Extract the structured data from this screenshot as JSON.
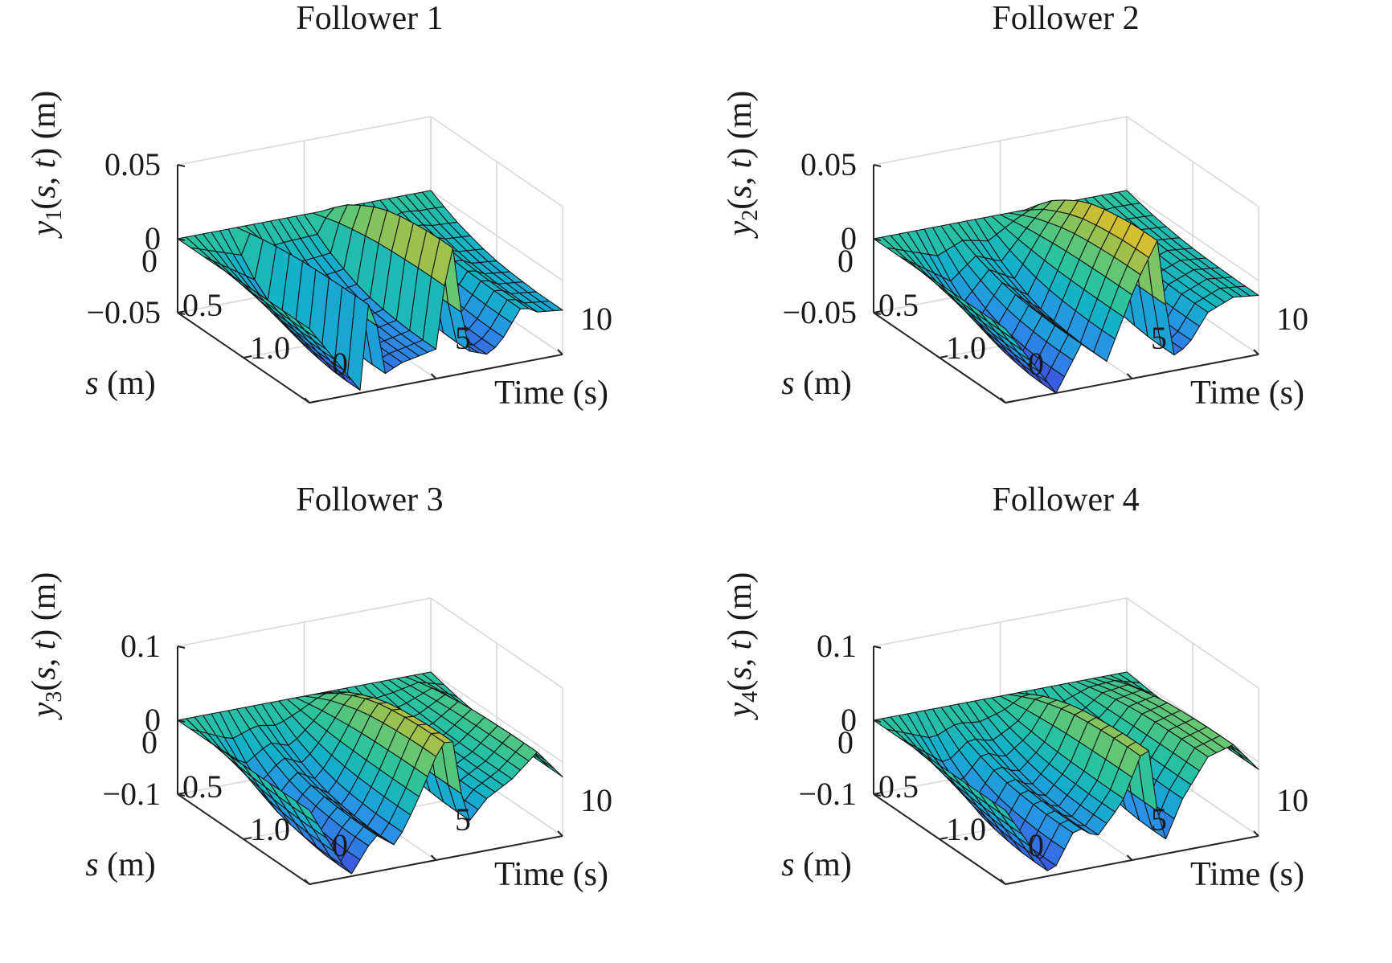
{
  "chart_data": [
    {
      "type": "surface",
      "title": "Follower 1",
      "index": "1",
      "xlabel": "Time (s)",
      "ylabel": "s (m)",
      "zlabel": "y1(s, t) (m)",
      "xlim": [
        0,
        10
      ],
      "ylim": [
        0,
        1.0
      ],
      "zlim": [
        -0.05,
        0.05
      ],
      "xticks": [
        "0",
        "5",
        "10"
      ],
      "yticks": [
        "0",
        "0.5",
        "1.0"
      ],
      "zticks": [
        "0.05",
        "0",
        "−0.05"
      ],
      "zcolor_range": [
        -0.06,
        0.06
      ],
      "surface": {
        "t_steps": 31,
        "s_steps": 11,
        "t_max": 10,
        "s_max": 1.0,
        "deflection_envelope": [
          0,
          0.24,
          0.46,
          0.62,
          0.76,
          0.86,
          0.92,
          0.96,
          0.99,
          1.0,
          1.0
        ],
        "tip_deflection": [
          {
            "t": 0,
            "z": 0
          },
          {
            "t": 2.0,
            "z": -0.048
          },
          {
            "t": 2.4,
            "z": 0.02
          },
          {
            "t": 3.0,
            "z": -0.04
          },
          {
            "t": 3.6,
            "z": -0.035
          },
          {
            "t": 4.2,
            "z": -0.033
          },
          {
            "t": 5.0,
            "z": -0.03
          },
          {
            "t": 5.6,
            "z": 0.045
          },
          {
            "t": 6.2,
            "z": -0.035
          },
          {
            "t": 7.0,
            "z": -0.04
          },
          {
            "t": 7.5,
            "z": -0.035
          },
          {
            "t": 8.4,
            "z": -0.012
          },
          {
            "t": 9.0,
            "z": -0.018
          },
          {
            "t": 10,
            "z": -0.02
          }
        ]
      }
    },
    {
      "type": "surface",
      "title": "Follower 2",
      "index": "2",
      "xlabel": "Time (s)",
      "ylabel": "s (m)",
      "zlabel": "y2(s, t) (m)",
      "xlim": [
        0,
        10
      ],
      "ylim": [
        0,
        1.0
      ],
      "zlim": [
        -0.05,
        0.05
      ],
      "xticks": [
        "0",
        "5",
        "10"
      ],
      "yticks": [
        "0",
        "0.5",
        "1.0"
      ],
      "zticks": [
        "0.05",
        "0",
        "−0.05"
      ],
      "zcolor_range": [
        -0.06,
        0.06
      ],
      "surface": {
        "t_steps": 31,
        "s_steps": 11,
        "t_max": 10,
        "s_max": 1.0,
        "deflection_envelope": [
          0,
          0.24,
          0.46,
          0.62,
          0.76,
          0.86,
          0.92,
          0.96,
          0.99,
          1.0,
          1.0
        ],
        "tip_deflection": [
          {
            "t": 0,
            "z": 0
          },
          {
            "t": 2.0,
            "z": -0.05
          },
          {
            "t": 3.0,
            "z": -0.02
          },
          {
            "t": 4.0,
            "z": -0.035
          },
          {
            "t": 5.2,
            "z": 0.015
          },
          {
            "t": 6.0,
            "z": 0.04
          },
          {
            "t": 6.6,
            "z": -0.04
          },
          {
            "t": 7.2,
            "z": -0.035
          },
          {
            "t": 8.0,
            "z": -0.015
          },
          {
            "t": 9.0,
            "z": -0.008
          },
          {
            "t": 10,
            "z": -0.01
          }
        ]
      }
    },
    {
      "type": "surface",
      "title": "Follower 3",
      "index": "3",
      "xlabel": "Time (s)",
      "ylabel": "s (m)",
      "zlabel": "y3(s, t) (m)",
      "xlim": [
        0,
        10
      ],
      "ylim": [
        0,
        1.0
      ],
      "zlim": [
        -0.1,
        0.1
      ],
      "xticks": [
        "0",
        "5",
        "10"
      ],
      "yticks": [
        "0",
        "0.5",
        "1.0"
      ],
      "zticks": [
        "0.1",
        "0",
        "−0.1"
      ],
      "zcolor_range": [
        -0.12,
        0.12
      ],
      "surface": {
        "t_steps": 31,
        "s_steps": 11,
        "t_max": 10,
        "s_max": 1.0,
        "deflection_envelope": [
          0,
          0.24,
          0.46,
          0.62,
          0.76,
          0.86,
          0.92,
          0.96,
          0.99,
          1.0,
          1.0
        ],
        "tip_deflection": [
          {
            "t": 0,
            "z": 0
          },
          {
            "t": 1.6,
            "z": -0.1
          },
          {
            "t": 2.6,
            "z": -0.05
          },
          {
            "t": 3.4,
            "z": -0.07
          },
          {
            "t": 4.2,
            "z": -0.02
          },
          {
            "t": 5.0,
            "z": 0.04
          },
          {
            "t": 5.6,
            "z": 0.07
          },
          {
            "t": 6.2,
            "z": -0.06
          },
          {
            "t": 7.0,
            "z": -0.03
          },
          {
            "t": 8.0,
            "z": -0.01
          },
          {
            "t": 9.0,
            "z": 0.02
          },
          {
            "t": 10,
            "z": -0.02
          }
        ]
      }
    },
    {
      "type": "surface",
      "title": "Follower 4",
      "index": "4",
      "xlabel": "Time (s)",
      "ylabel": "s (m)",
      "zlabel": "y4(s, t) (m)",
      "xlim": [
        0,
        10
      ],
      "ylim": [
        0,
        1.0
      ],
      "zlim": [
        -0.1,
        0.1
      ],
      "xticks": [
        "0",
        "5",
        "10"
      ],
      "yticks": [
        "0",
        "0.5",
        "1.0"
      ],
      "zticks": [
        "0.1",
        "0",
        "−0.1"
      ],
      "zcolor_range": [
        -0.12,
        0.12
      ],
      "surface": {
        "t_steps": 31,
        "s_steps": 11,
        "t_max": 10,
        "s_max": 1.0,
        "deflection_envelope": [
          0,
          0.24,
          0.46,
          0.62,
          0.76,
          0.86,
          0.92,
          0.96,
          0.99,
          1.0,
          1.0
        ],
        "tip_deflection": [
          {
            "t": 0,
            "z": 0
          },
          {
            "t": 1.8,
            "z": -0.1
          },
          {
            "t": 2.8,
            "z": -0.04
          },
          {
            "t": 3.6,
            "z": -0.06
          },
          {
            "t": 4.6,
            "z": -0.02
          },
          {
            "t": 5.6,
            "z": 0.06
          },
          {
            "t": 6.2,
            "z": -0.09
          },
          {
            "t": 7.0,
            "z": -0.03
          },
          {
            "t": 8.0,
            "z": 0.02
          },
          {
            "t": 9.0,
            "z": 0.03
          },
          {
            "t": 10,
            "z": -0.01
          }
        ]
      }
    }
  ],
  "colormap": [
    "#3e26a8",
    "#3a5ce0",
    "#2a91e6",
    "#12b1c9",
    "#2cc39c",
    "#6cc66e",
    "#c2bd36",
    "#f9c52a",
    "#f9fb0e"
  ]
}
